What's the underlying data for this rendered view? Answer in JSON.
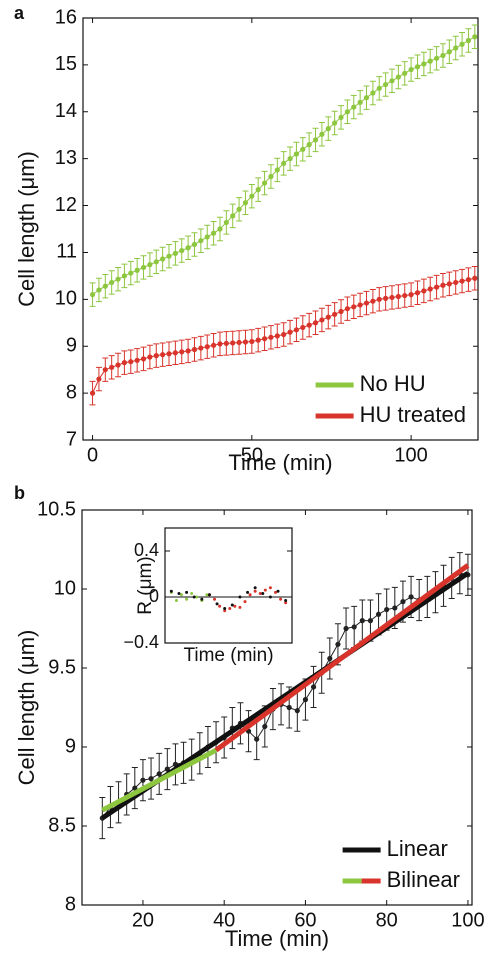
{
  "chart_data": [
    {
      "type": "errorbar",
      "panel_label": "a",
      "xlabel": "Time (min)",
      "ylabel": "Cell length (μm)",
      "x": [
        0,
        2,
        4,
        6,
        8,
        10,
        12,
        14,
        16,
        18,
        20,
        22,
        24,
        26,
        28,
        30,
        32,
        34,
        36,
        38,
        40,
        42,
        44,
        46,
        48,
        50,
        52,
        54,
        56,
        58,
        60,
        62,
        64,
        66,
        68,
        70,
        72,
        74,
        76,
        78,
        80,
        82,
        84,
        86,
        88,
        90,
        92,
        94,
        96,
        98,
        100,
        102,
        104,
        106,
        108,
        110,
        112,
        114,
        116,
        118,
        120
      ],
      "series": [
        {
          "name": "No HU",
          "color": "#8dc63f",
          "error": 0.25,
          "values": [
            10.1,
            10.2,
            10.28,
            10.36,
            10.43,
            10.5,
            10.56,
            10.62,
            10.68,
            10.74,
            10.8,
            10.86,
            10.92,
            10.98,
            11.04,
            11.1,
            11.17,
            11.25,
            11.33,
            11.41,
            11.5,
            11.64,
            11.78,
            11.92,
            12.06,
            12.2,
            12.34,
            12.48,
            12.62,
            12.76,
            12.9,
            13.0,
            13.1,
            13.2,
            13.3,
            13.4,
            13.52,
            13.64,
            13.76,
            13.88,
            14.0,
            14.1,
            14.2,
            14.3,
            14.4,
            14.5,
            14.58,
            14.66,
            14.74,
            14.82,
            14.9,
            14.96,
            15.02,
            15.08,
            15.14,
            15.2,
            15.28,
            15.36,
            15.44,
            15.52,
            15.6
          ]
        },
        {
          "name": "HU treated",
          "color": "#d9342b",
          "error": 0.25,
          "values": [
            8.0,
            8.3,
            8.5,
            8.55,
            8.6,
            8.65,
            8.67,
            8.7,
            8.73,
            8.77,
            8.8,
            8.82,
            8.84,
            8.86,
            8.88,
            8.9,
            8.93,
            8.96,
            8.99,
            9.02,
            9.05,
            9.06,
            9.07,
            9.08,
            9.09,
            9.1,
            9.13,
            9.16,
            9.19,
            9.22,
            9.25,
            9.3,
            9.35,
            9.4,
            9.45,
            9.5,
            9.56,
            9.62,
            9.68,
            9.74,
            9.8,
            9.84,
            9.88,
            9.92,
            9.96,
            10.0,
            10.02,
            10.04,
            10.06,
            10.08,
            10.1,
            10.14,
            10.18,
            10.22,
            10.26,
            10.3,
            10.33,
            10.36,
            10.39,
            10.42,
            10.45
          ]
        }
      ],
      "xlim": [
        -3,
        121
      ],
      "xticks": [
        0,
        50,
        100
      ],
      "ylim": [
        7,
        16
      ],
      "yticks": [
        7,
        8,
        9,
        10,
        11,
        12,
        13,
        14,
        15,
        16
      ],
      "legend": "lower right"
    },
    {
      "type": "errorbar",
      "panel_label": "b",
      "xlabel": "Time (min)",
      "ylabel": "Cell length (μm)",
      "x": [
        10,
        12,
        14,
        16,
        18,
        20,
        22,
        24,
        26,
        28,
        30,
        32,
        34,
        36,
        38,
        40,
        42,
        44,
        46,
        48,
        50,
        52,
        54,
        56,
        58,
        60,
        62,
        64,
        66,
        68,
        70,
        72,
        74,
        76,
        78,
        80,
        82,
        84,
        86,
        88,
        90,
        92,
        94,
        96,
        98,
        100
      ],
      "series": [
        {
          "color": "#222222",
          "error": 0.13,
          "values": [
            8.55,
            8.62,
            8.65,
            8.7,
            8.74,
            8.79,
            8.8,
            8.83,
            8.86,
            8.89,
            8.9,
            8.92,
            8.96,
            9.0,
            9.03,
            9.06,
            9.12,
            9.15,
            9.1,
            9.05,
            9.13,
            9.24,
            9.27,
            9.25,
            9.23,
            9.3,
            9.38,
            9.47,
            9.56,
            9.65,
            9.75,
            9.76,
            9.8,
            9.8,
            9.84,
            9.87,
            9.88,
            9.92,
            9.95,
            9.93,
            9.95,
            9.98,
            10.02,
            10.07,
            10.1,
            10.09
          ]
        }
      ],
      "fits": [
        {
          "name": "Linear",
          "colors": [
            "#111111"
          ],
          "x": [
            10,
            100
          ],
          "values": [
            8.55,
            10.1
          ]
        },
        {
          "name": "Bilinear",
          "colors": [
            "#8dc63f",
            "#d9342b"
          ],
          "x": [
            10,
            38,
            100
          ],
          "values": [
            8.6,
            8.98,
            10.15
          ]
        }
      ],
      "xlim": [
        5,
        101
      ],
      "xticks": [
        20,
        40,
        60,
        80,
        100
      ],
      "ylim": [
        8,
        10.5
      ],
      "yticks": [
        8,
        8.5,
        9,
        9.5,
        10,
        10.5
      ],
      "legend": "lower right"
    },
    {
      "type": "scatter",
      "xlabel": "Time (min)",
      "ylabel": "R (μm)",
      "zero_line": true,
      "series": [
        {
          "color": "#8dc63f",
          "x": [
            10,
            14,
            18,
            22,
            26,
            30,
            34,
            38
          ],
          "values": [
            0.04,
            -0.03,
            0.02,
            -0.02,
            0.03,
            0.0,
            -0.03,
            0.02
          ]
        },
        {
          "color": "#d9342b",
          "x": [
            40,
            44,
            48,
            52,
            56,
            60,
            64,
            68,
            72,
            76,
            80,
            84,
            88,
            92,
            96,
            100
          ],
          "values": [
            0.02,
            -0.02,
            -0.08,
            -0.12,
            -0.1,
            -0.08,
            -0.09,
            -0.04,
            0.02,
            0.05,
            0.03,
            0.06,
            0.08,
            0.04,
            -0.02,
            -0.05
          ]
        },
        {
          "color": "#111111",
          "x": [
            10,
            16,
            22,
            28,
            34,
            40,
            46,
            52,
            58,
            64,
            70,
            76,
            82,
            88,
            94,
            100
          ],
          "values": [
            0.05,
            0.03,
            0.04,
            0.0,
            -0.02,
            0.02,
            -0.06,
            -0.1,
            -0.07,
            0.0,
            0.04,
            0.08,
            0.03,
            0.0,
            0.05,
            -0.03
          ]
        }
      ],
      "xlim": [
        5,
        105
      ],
      "ylim": [
        -0.4,
        0.6
      ],
      "yticks": [
        {
          "value": -0.4,
          "label": "−0.4"
        },
        0,
        0.4
      ]
    }
  ]
}
